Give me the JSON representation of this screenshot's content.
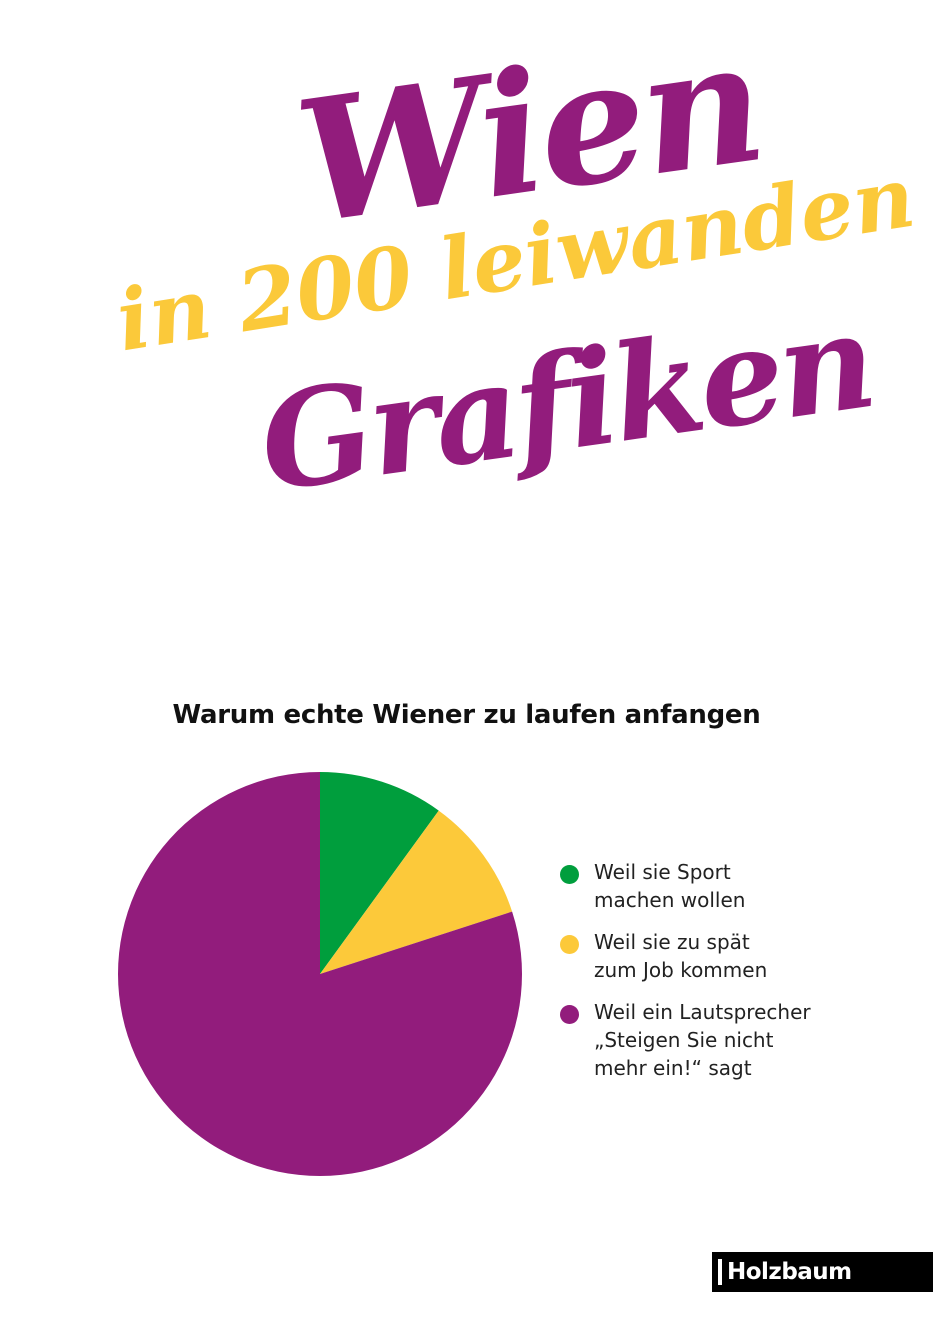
{
  "cover": {
    "title_line1": "Wien",
    "title_line2": "in 200 leiwanden",
    "title_line3": "Grafiken",
    "color_primary": "#921c7c",
    "color_secondary": "#fbc93a"
  },
  "chart_data": {
    "type": "pie",
    "title": "Warum echte Wiener zu laufen anfangen",
    "legend_position": "right",
    "slices": [
      {
        "label": "Weil sie Sport\nmachen wollen",
        "value": 10,
        "color": "#009e3d"
      },
      {
        "label": "Weil sie zu spät\nzum Job kommen",
        "value": 10,
        "color": "#fcc93a"
      },
      {
        "label": "Weil ein Lautsprecher\n„Steigen Sie nicht\nmehr ein!“ sagt",
        "value": 80,
        "color": "#921c7c"
      }
    ]
  },
  "publisher": {
    "name": "Holzbaum"
  }
}
